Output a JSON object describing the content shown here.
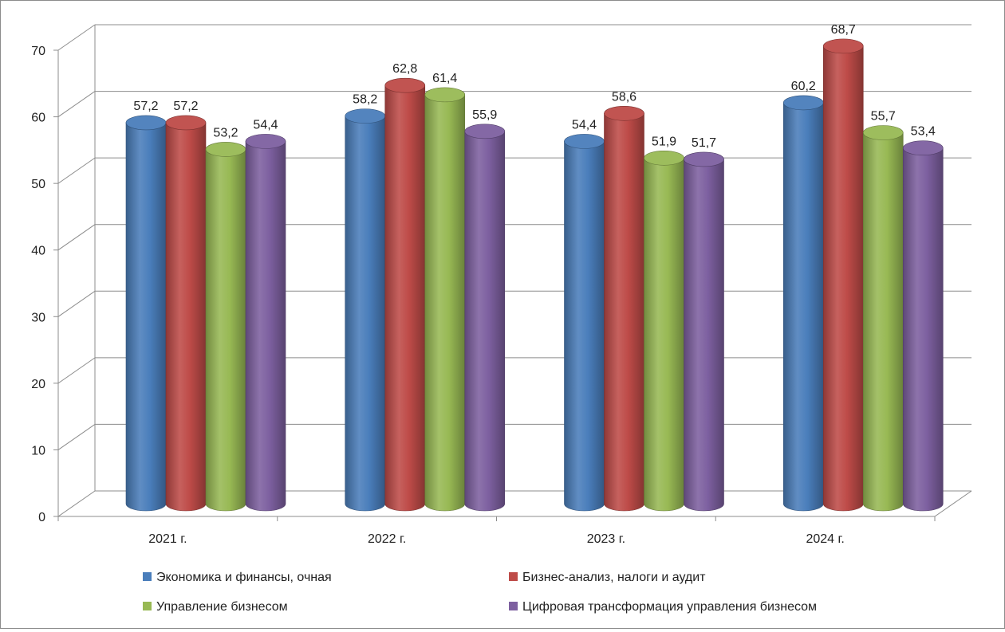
{
  "chart_data": {
    "type": "bar",
    "title": "",
    "xlabel": "",
    "ylabel": "",
    "ylim": [
      0,
      70
    ],
    "y_ticks": [
      "0",
      "10",
      "20",
      "30",
      "40",
      "50",
      "60",
      "70"
    ],
    "grid": true,
    "legend_position": "bottom",
    "categories": [
      "2021 г.",
      "2022 г.",
      "2023 г.",
      "2024 г."
    ],
    "series": [
      {
        "name": "Экономика и финансы, очная",
        "color": "#4a7ebb",
        "values": [
          57.2,
          58.2,
          54.4,
          60.2
        ],
        "labels": [
          "57,2",
          "58,2",
          "54,4",
          "60,2"
        ]
      },
      {
        "name": "Бизнес-анализ, налоги и аудит",
        "color": "#be4b48",
        "values": [
          57.2,
          62.8,
          58.6,
          68.7
        ],
        "labels": [
          "57,2",
          "62,8",
          "58,6",
          "68,7"
        ]
      },
      {
        "name": "Управление бизнесом",
        "color": "#98b954",
        "values": [
          53.2,
          61.4,
          51.9,
          55.7
        ],
        "labels": [
          "53,2",
          "61,4",
          "51,9",
          "55,7"
        ]
      },
      {
        "name": "Цифровая трансформация управления бизнесом",
        "color": "#7d60a0",
        "values": [
          54.4,
          55.9,
          51.7,
          53.4
        ],
        "labels": [
          "54,4",
          "55,9",
          "51,7",
          "53,4"
        ]
      }
    ]
  }
}
